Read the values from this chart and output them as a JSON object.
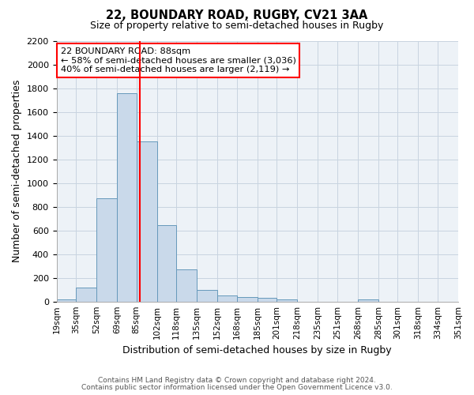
{
  "title": "22, BOUNDARY ROAD, RUGBY, CV21 3AA",
  "subtitle": "Size of property relative to semi-detached houses in Rugby",
  "xlabel": "Distribution of semi-detached houses by size in Rugby",
  "ylabel": "Number of semi-detached properties",
  "bar_values": [
    15,
    120,
    870,
    1760,
    1350,
    645,
    270,
    100,
    50,
    35,
    30,
    20,
    0,
    0,
    0,
    15,
    0,
    0,
    0,
    0
  ],
  "bin_labels": [
    "19sqm",
    "35sqm",
    "52sqm",
    "69sqm",
    "85sqm",
    "102sqm",
    "118sqm",
    "135sqm",
    "152sqm",
    "168sqm",
    "185sqm",
    "201sqm",
    "218sqm",
    "235sqm",
    "251sqm",
    "268sqm",
    "285sqm",
    "301sqm",
    "318sqm",
    "334sqm",
    "351sqm"
  ],
  "bin_edges": [
    19,
    35,
    52,
    69,
    85,
    102,
    118,
    135,
    152,
    168,
    185,
    201,
    218,
    235,
    251,
    268,
    285,
    301,
    318,
    334,
    351
  ],
  "bar_color": "#c9d9ea",
  "bar_edge_color": "#6699bb",
  "grid_color": "#c8d4e0",
  "background_color": "#edf2f7",
  "vline_x": 88,
  "vline_color": "red",
  "annotation_title": "22 BOUNDARY ROAD: 88sqm",
  "annotation_line1": "← 58% of semi-detached houses are smaller (3,036)",
  "annotation_line2": "40% of semi-detached houses are larger (2,119) →",
  "annotation_box_color": "white",
  "annotation_box_edge": "red",
  "ylim": [
    0,
    2200
  ],
  "yticks": [
    0,
    200,
    400,
    600,
    800,
    1000,
    1200,
    1400,
    1600,
    1800,
    2000,
    2200
  ],
  "footer1": "Contains HM Land Registry data © Crown copyright and database right 2024.",
  "footer2": "Contains public sector information licensed under the Open Government Licence v3.0."
}
